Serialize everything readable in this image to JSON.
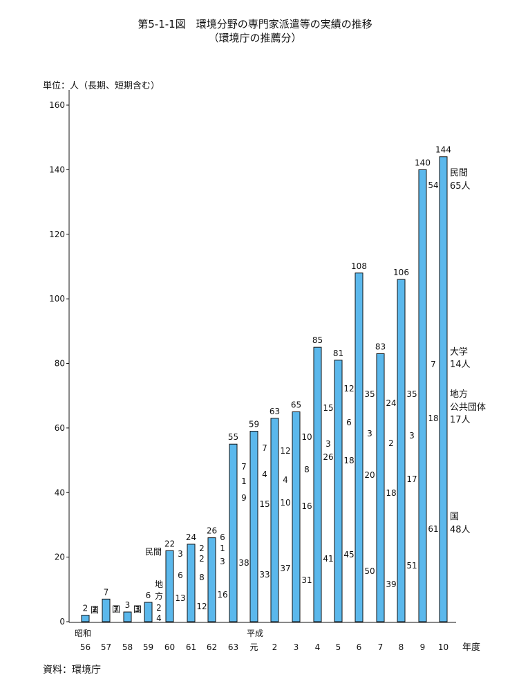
{
  "title": "第5-1-1図　環境分野の専門家派遣等の実績の推移",
  "subtitle": "（環境庁の推薦分）",
  "unit_label": "単位：人（長期、短期含む）",
  "source": "資料：環境庁",
  "x_unit": "年度",
  "era_labels": {
    "showa": "昭和",
    "heisei": "平成"
  },
  "bar_color": "#5bb8ec",
  "chart_data": {
    "type": "bar",
    "ylim": [
      0,
      160
    ],
    "yticks": [
      0,
      20,
      40,
      60,
      80,
      100,
      120,
      140,
      160
    ],
    "grid": false,
    "categories": [
      "56",
      "57",
      "58",
      "59",
      "60",
      "61",
      "62",
      "63",
      "元",
      "2",
      "3",
      "4",
      "5",
      "6",
      "7",
      "8",
      "9",
      "10"
    ],
    "totals": [
      2,
      7,
      3,
      6,
      22,
      24,
      26,
      55,
      59,
      63,
      65,
      85,
      81,
      108,
      83,
      106,
      140,
      144
    ],
    "breakdown": [
      [
        "国",
        "2"
      ],
      [
        "国",
        "7"
      ],
      [
        "国",
        "3"
      ],
      [
        "地",
        "方",
        "2",
        "4"
      ],
      [
        "3",
        "6",
        "13"
      ],
      [
        "2",
        "2",
        "8",
        "12"
      ],
      [
        "6",
        "1",
        "3",
        "16"
      ],
      [
        "7",
        "1",
        "9",
        "38"
      ],
      [
        "7",
        "4",
        "15",
        "33"
      ],
      [
        "12",
        "4",
        "10",
        "37"
      ],
      [
        "10",
        "8",
        "16",
        "31"
      ],
      [
        "15",
        "3",
        "26",
        "41"
      ],
      [
        "12",
        "6",
        "18",
        "45"
      ],
      [
        "35",
        "3",
        "20",
        "50"
      ],
      [
        "24",
        "2",
        "18",
        "39"
      ],
      [
        "35",
        "3",
        "17",
        "51"
      ],
      [
        "54",
        "7",
        "18",
        "61"
      ],
      []
    ],
    "side_labels": [
      "民間",
      "65人",
      "大学",
      "14人",
      "地方",
      "公共団体",
      "17人",
      "国",
      "48人"
    ],
    "minkan_label": "民間"
  }
}
